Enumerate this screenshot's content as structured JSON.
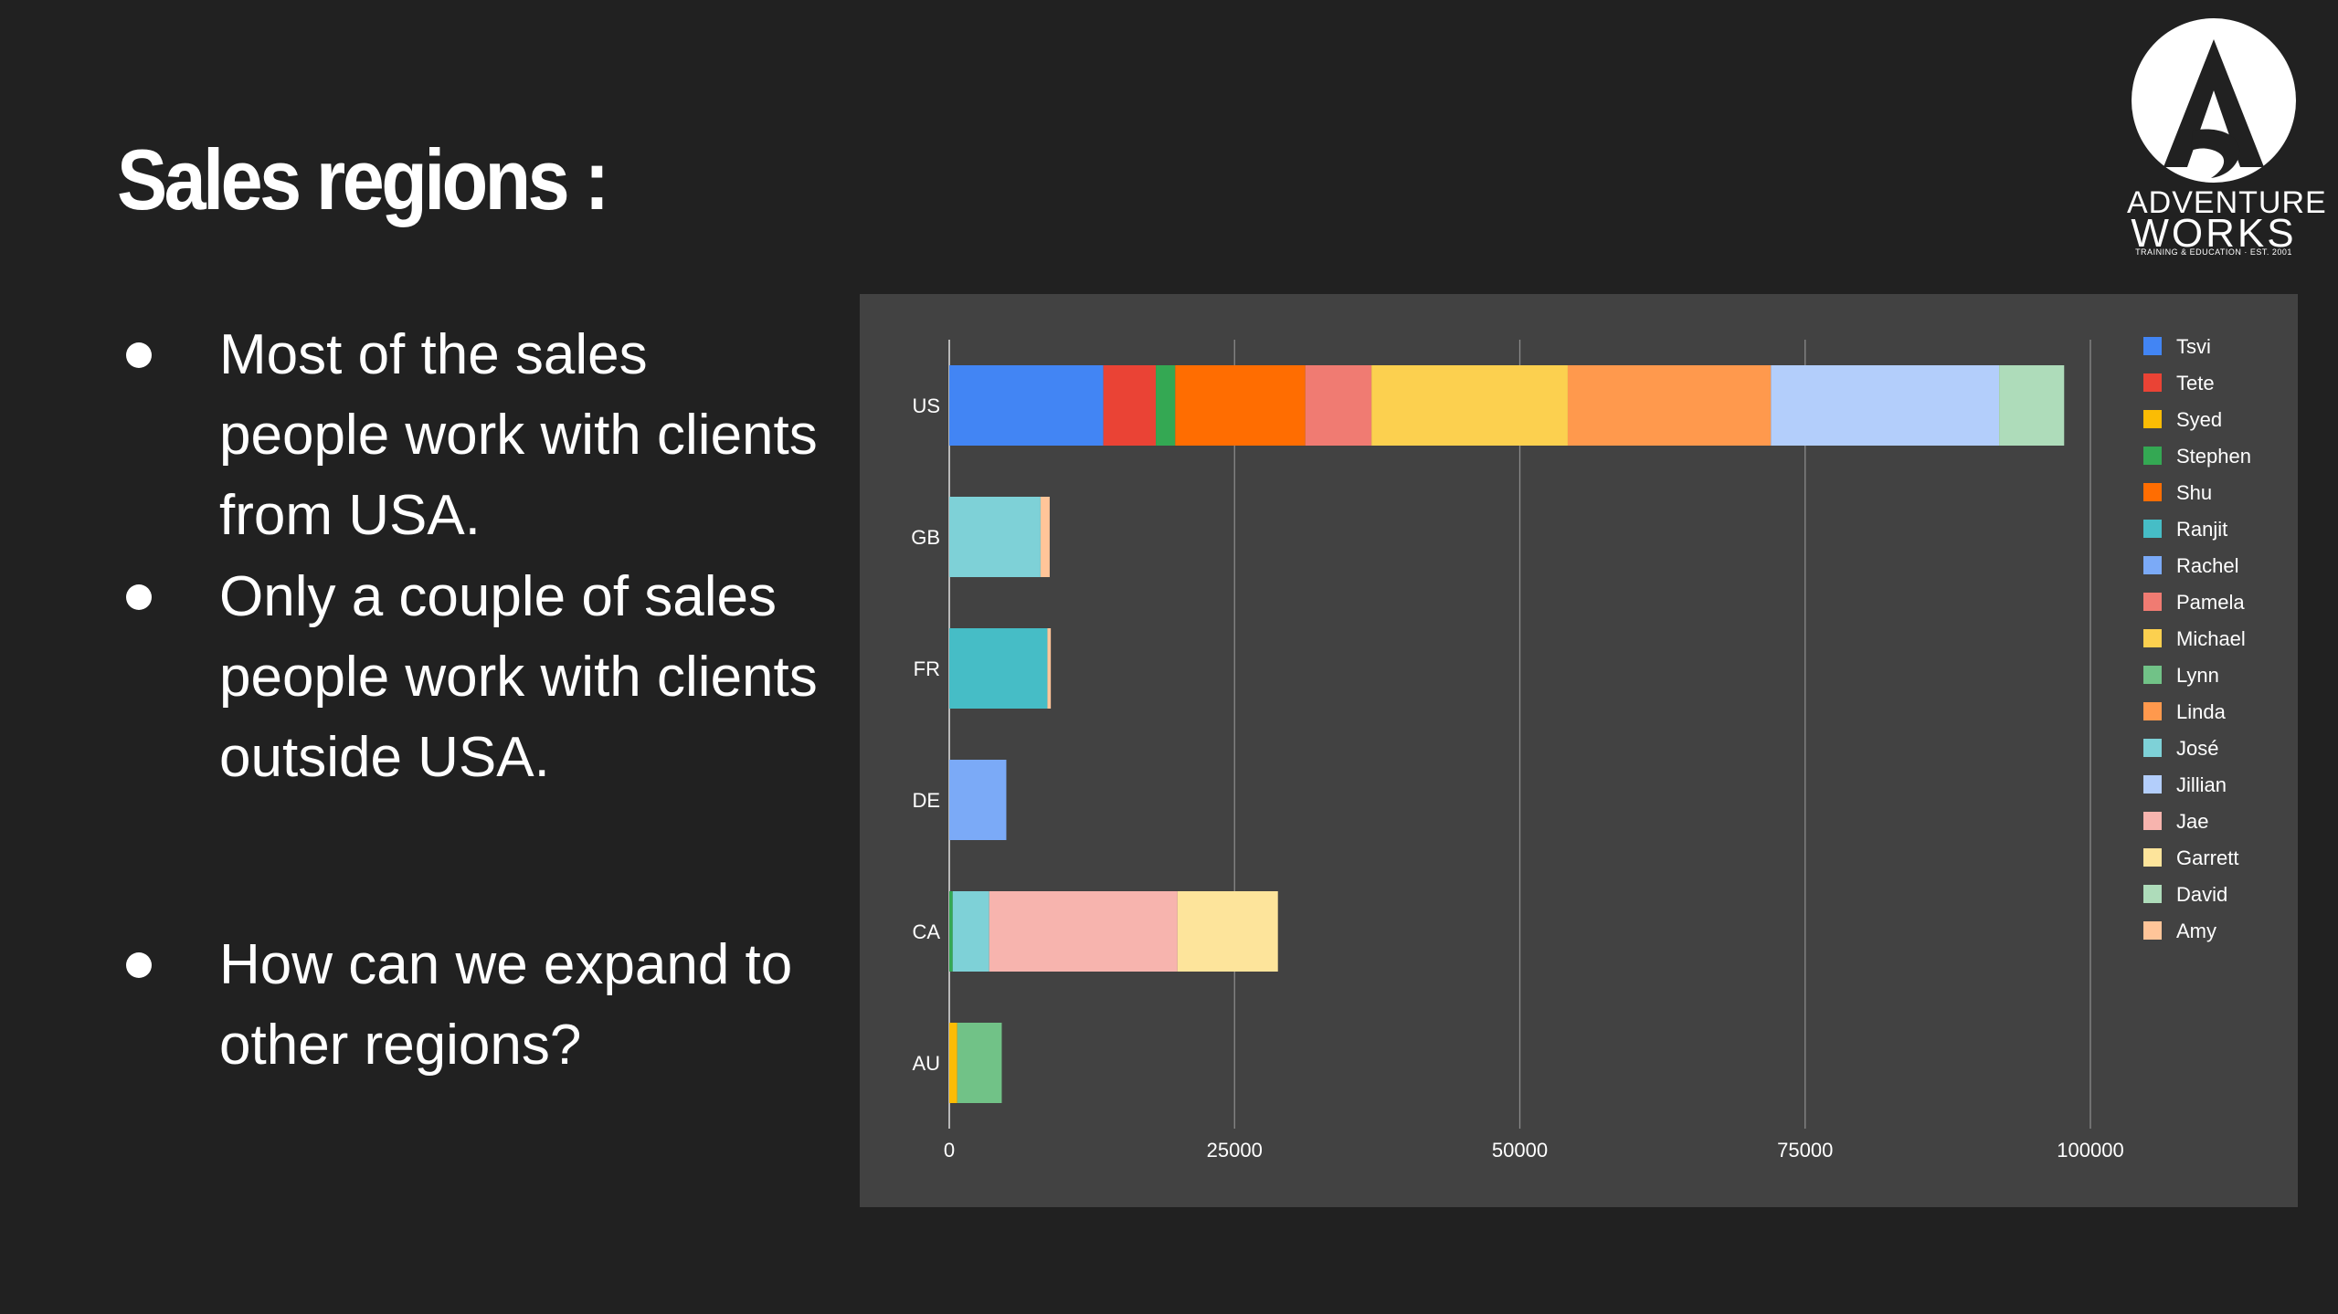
{
  "slide": {
    "title": "Sales regions :",
    "bullets": [
      {
        "text": "Most of the sales people work with clients from USA."
      },
      {
        "text": "Only a couple of sales people work with clients outside USA."
      },
      {
        "text": "How can we expand to other regions?"
      }
    ]
  },
  "logo": {
    "icon": "adventure-works-logo-icon",
    "line1": "ADVENTURE",
    "line2": "WORKS",
    "tagline": "TRAINING & EDUCATION · EST. 2001"
  },
  "chart_data": {
    "type": "bar",
    "orientation": "horizontal",
    "stacked": true,
    "title": "",
    "xlabel": "",
    "ylabel": "",
    "xlim": [
      0,
      100000
    ],
    "x_ticks": [
      "0",
      "25000",
      "50000",
      "75000",
      "100000"
    ],
    "grid": "vertical",
    "legend_position": "right",
    "categories": [
      "US",
      "GB",
      "FR",
      "DE",
      "CA",
      "AU"
    ],
    "series": [
      {
        "name": "Tsvi",
        "color": "#4285f4",
        "values": [
          13500,
          0,
          0,
          0,
          0,
          0
        ]
      },
      {
        "name": "Tete",
        "color": "#ea4335",
        "values": [
          4600,
          0,
          0,
          0,
          0,
          0
        ]
      },
      {
        "name": "Syed",
        "color": "#fbbc04",
        "values": [
          0,
          0,
          0,
          0,
          0,
          700
        ]
      },
      {
        "name": "Stephen",
        "color": "#34a853",
        "values": [
          1700,
          0,
          0,
          0,
          300,
          0
        ]
      },
      {
        "name": "Shu",
        "color": "#ff6d01",
        "values": [
          11400,
          0,
          0,
          0,
          0,
          0
        ]
      },
      {
        "name": "Ranjit",
        "color": "#46bdc6",
        "values": [
          0,
          0,
          8600,
          0,
          0,
          0
        ]
      },
      {
        "name": "Rachel",
        "color": "#7baaf7",
        "values": [
          0,
          0,
          0,
          5000,
          0,
          0
        ]
      },
      {
        "name": "Pamela",
        "color": "#f07b72",
        "values": [
          5800,
          0,
          0,
          0,
          0,
          0
        ]
      },
      {
        "name": "Michael",
        "color": "#fcd04f",
        "values": [
          17200,
          0,
          0,
          0,
          0,
          0
        ]
      },
      {
        "name": "Lynn",
        "color": "#71c287",
        "values": [
          0,
          0,
          0,
          0,
          0,
          3900
        ]
      },
      {
        "name": "Linda",
        "color": "#ff994d",
        "values": [
          17800,
          0,
          0,
          0,
          0,
          0
        ]
      },
      {
        "name": "José",
        "color": "#7ed1d7",
        "values": [
          0,
          8000,
          0,
          0,
          3200,
          0
        ]
      },
      {
        "name": "Jillian",
        "color": "#b3cefb",
        "values": [
          20000,
          0,
          0,
          0,
          0,
          0
        ]
      },
      {
        "name": "Jae",
        "color": "#f7b4ae",
        "values": [
          0,
          0,
          0,
          0,
          16500,
          0
        ]
      },
      {
        "name": "Garrett",
        "color": "#fde49b",
        "values": [
          0,
          0,
          0,
          0,
          8800,
          0
        ]
      },
      {
        "name": "David",
        "color": "#aedcba",
        "values": [
          5700,
          0,
          0,
          0,
          0,
          0
        ]
      },
      {
        "name": "Amy",
        "color": "#ffc599",
        "values": [
          0,
          800,
          300,
          0,
          0,
          0
        ]
      }
    ]
  }
}
